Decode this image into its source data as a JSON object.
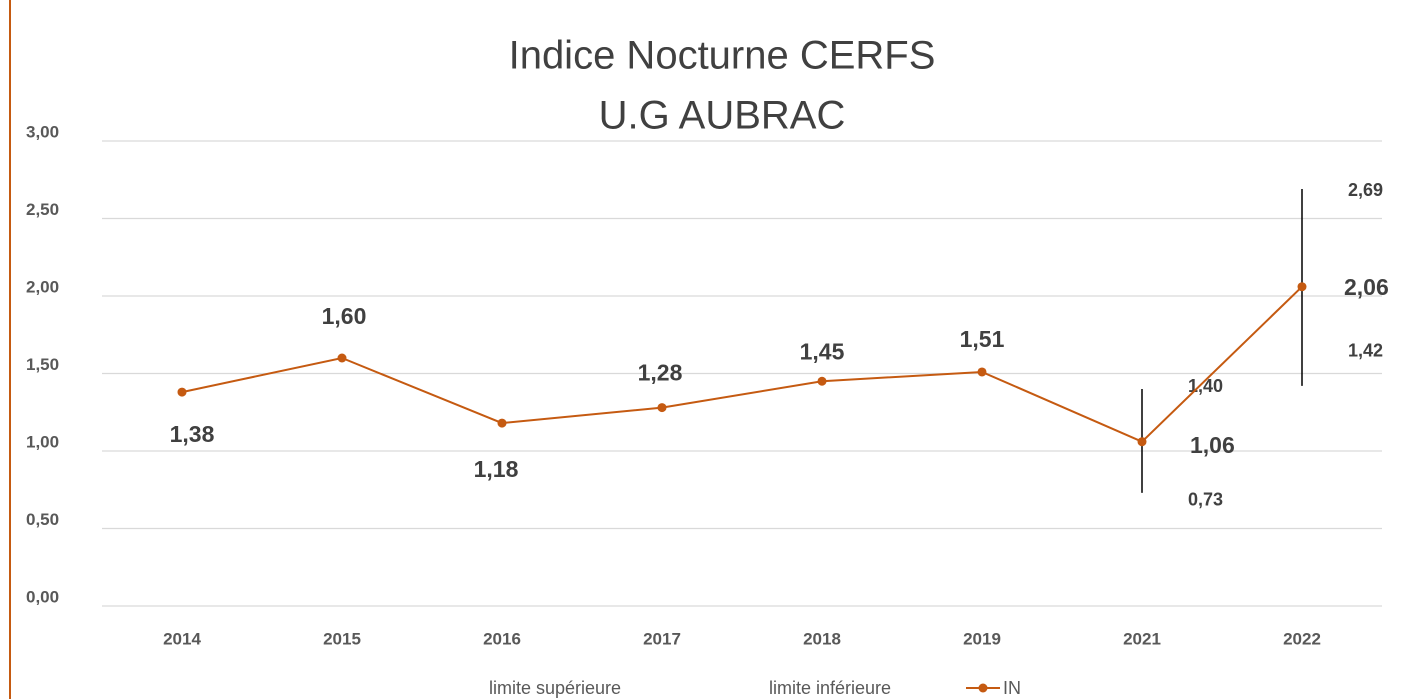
{
  "chart_data": {
    "type": "line",
    "title": [
      "Indice Nocturne CERFS",
      "U.G AUBRAC"
    ],
    "categories": [
      "2014",
      "2015",
      "2016",
      "2017",
      "2018",
      "2019",
      "2021",
      "2022"
    ],
    "series": [
      {
        "name": "limite supérieure",
        "values": [
          null,
          null,
          null,
          null,
          null,
          null,
          1.4,
          2.69
        ],
        "value_labels": [
          null,
          null,
          null,
          null,
          null,
          null,
          "1,40",
          "2,69"
        ]
      },
      {
        "name": "limite inférieure",
        "values": [
          null,
          null,
          null,
          null,
          null,
          null,
          0.73,
          1.42
        ],
        "value_labels": [
          null,
          null,
          null,
          null,
          null,
          null,
          "0,73",
          "1,42"
        ]
      },
      {
        "name": "IN",
        "color": "#c55a11",
        "values": [
          1.38,
          1.6,
          1.18,
          1.28,
          1.45,
          1.51,
          1.06,
          2.06
        ],
        "value_labels": [
          "1,38",
          "1,60",
          "1,18",
          "1,28",
          "1,45",
          "1,51",
          "1,06",
          "2,06"
        ]
      }
    ],
    "ylim": [
      0,
      3
    ],
    "yticks": [
      {
        "value": 0,
        "label": "0,00"
      },
      {
        "value": 0.5,
        "label": "0,50"
      },
      {
        "value": 1,
        "label": "1,00"
      },
      {
        "value": 1.5,
        "label": "1,50"
      },
      {
        "value": 2,
        "label": "2,00"
      },
      {
        "value": 2.5,
        "label": "2,50"
      },
      {
        "value": 3,
        "label": "3,00"
      }
    ],
    "grid": true,
    "legend": "bottom"
  }
}
